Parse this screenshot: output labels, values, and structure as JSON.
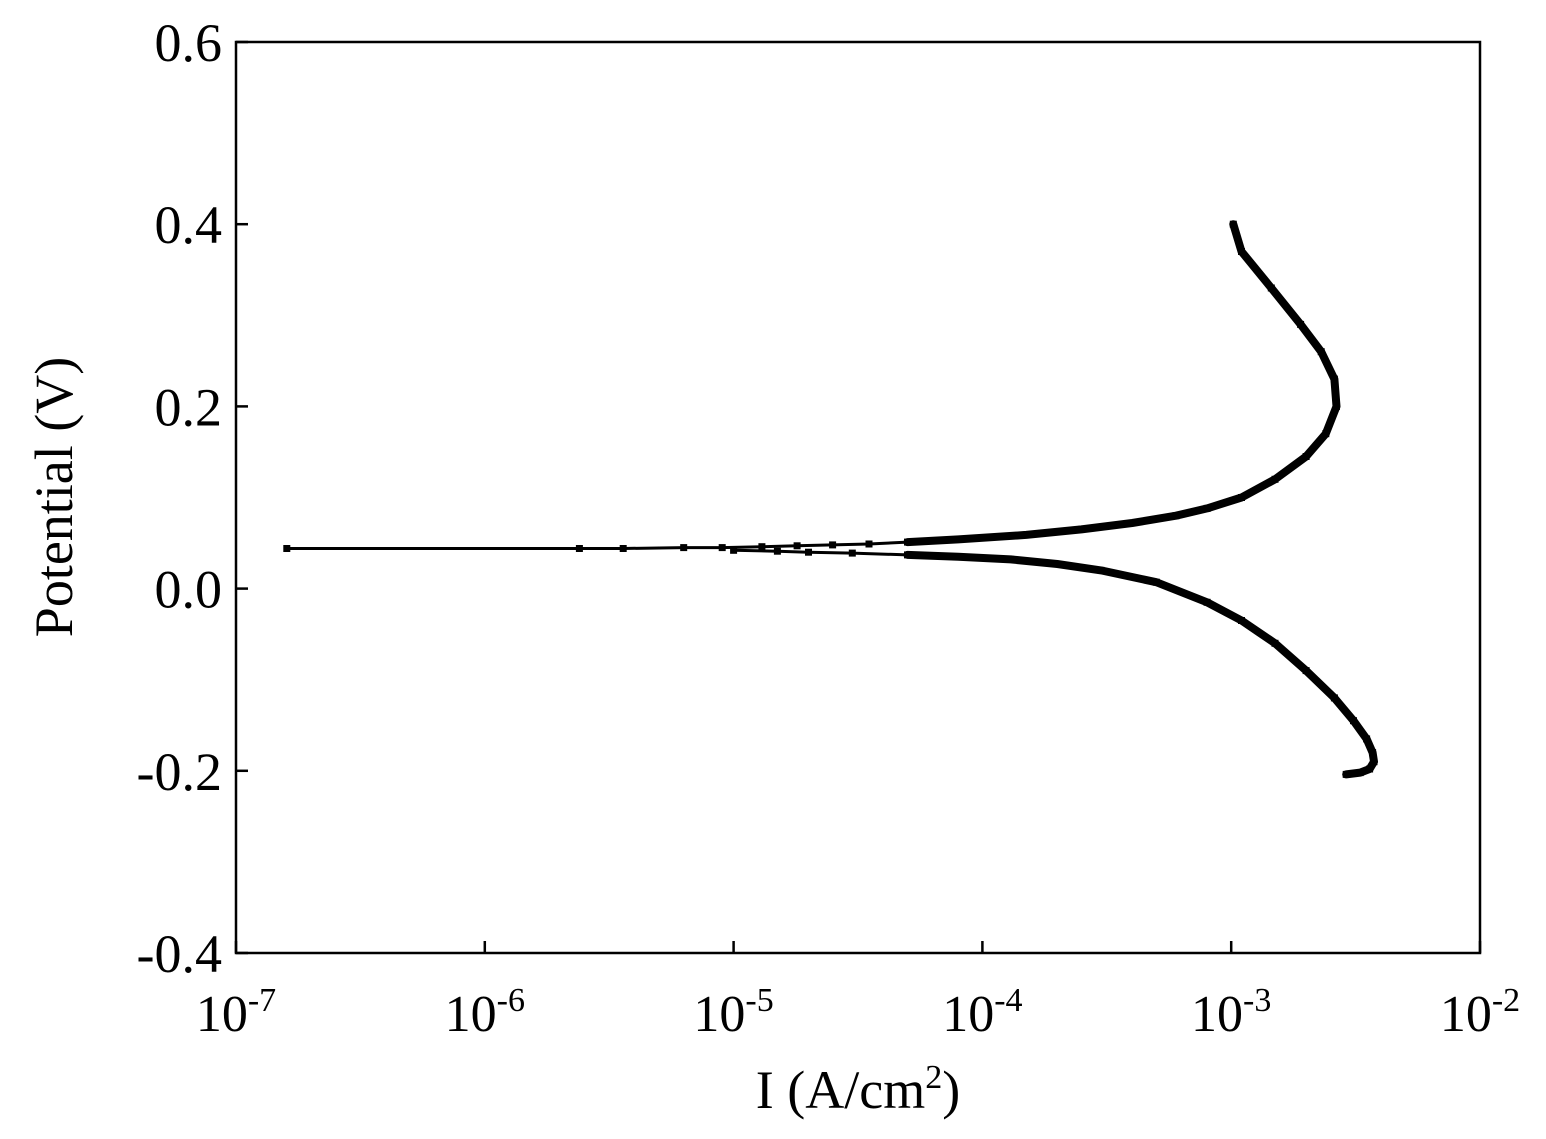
{
  "chart_data": {
    "type": "line",
    "title": "",
    "xlabel": {
      "base": "I (A/cm",
      "sup": "2",
      "tail": ")"
    },
    "ylabel": "Potential (V)",
    "x_scale": "log",
    "xlim": [
      1e-07,
      0.01
    ],
    "ylim": [
      -0.4,
      0.6
    ],
    "grid": false,
    "legend": "none",
    "x_ticks": [
      {
        "value": 1e-07,
        "base": "10",
        "exp": "-7"
      },
      {
        "value": 1e-06,
        "base": "10",
        "exp": "-6"
      },
      {
        "value": 1e-05,
        "base": "10",
        "exp": "-5"
      },
      {
        "value": 0.0001,
        "base": "10",
        "exp": "-4"
      },
      {
        "value": 0.001,
        "base": "10",
        "exp": "-3"
      },
      {
        "value": 0.01,
        "base": "10",
        "exp": "-2"
      }
    ],
    "y_ticks": [
      {
        "value": 0.6,
        "label": "0.6"
      },
      {
        "value": 0.4,
        "label": "0.4"
      },
      {
        "value": 0.2,
        "label": "0.2"
      },
      {
        "value": 0.0,
        "label": "0.0"
      },
      {
        "value": -0.2,
        "label": "-0.2"
      },
      {
        "value": -0.4,
        "label": "-0.4"
      }
    ],
    "series": [
      {
        "color": "#000000",
        "x": [
          1.6e-07,
          2.4e-06,
          3.6e-06,
          6.3e-06,
          9e-06,
          1.3e-05,
          1.8e-05,
          2.5e-05,
          3.5e-05,
          5e-05,
          8e-05,
          0.00015,
          0.00025,
          0.0004,
          0.0006,
          0.0008,
          0.0011,
          0.0015,
          0.002,
          0.0024,
          0.00265,
          0.0026,
          0.0023,
          0.0019,
          0.00145,
          0.0011,
          0.00102
        ],
        "y": [
          0.044,
          0.044,
          0.044,
          0.045,
          0.045,
          0.046,
          0.047,
          0.048,
          0.049,
          0.051,
          0.054,
          0.059,
          0.065,
          0.072,
          0.08,
          0.088,
          0.1,
          0.12,
          0.145,
          0.17,
          0.2,
          0.23,
          0.26,
          0.29,
          0.33,
          0.37,
          0.4
        ]
      },
      {
        "color": "#000000",
        "x": [
          1e-05,
          1.5e-05,
          2e-05,
          3e-05,
          5e-05,
          8e-05,
          0.00013,
          0.0002,
          0.0003,
          0.0005,
          0.0008,
          0.0011,
          0.0015,
          0.002,
          0.0026,
          0.0031,
          0.0035,
          0.0037,
          0.00375,
          0.0036,
          0.0033,
          0.0029
        ],
        "y": [
          0.042,
          0.041,
          0.04,
          0.039,
          0.037,
          0.035,
          0.032,
          0.027,
          0.02,
          0.007,
          -0.015,
          -0.035,
          -0.06,
          -0.09,
          -0.12,
          -0.145,
          -0.165,
          -0.18,
          -0.19,
          -0.198,
          -0.202,
          -0.204
        ]
      }
    ]
  }
}
